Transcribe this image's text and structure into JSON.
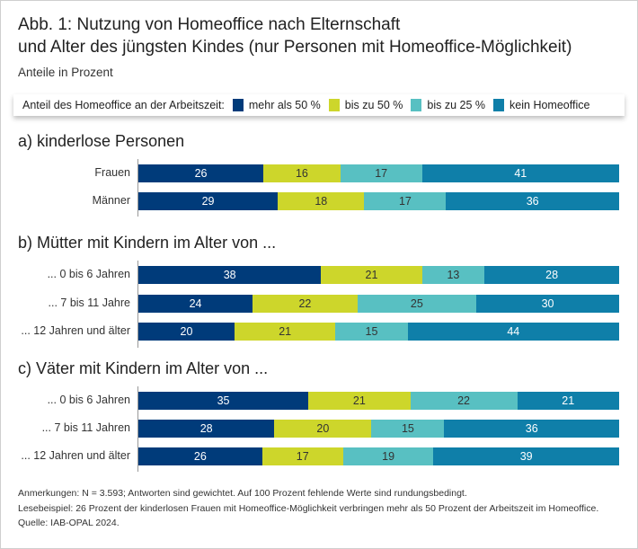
{
  "title_line1": "Abb. 1: Nutzung von Homeoffice nach Elternschaft",
  "title_line2": "und Alter des jüngsten Kindes (nur Personen mit Homeoffice-Möglichkeit)",
  "subtitle": "Anteile in Prozent",
  "legend_title": "Anteil des Homeoffice an der Arbeitszeit:",
  "notes": [
    "Anmerkungen: N = 3.593; Antworten sind gewichtet. Auf 100 Prozent fehlende Werte sind rundungsbedingt.",
    "Lesebeispiel: 26 Prozent der kinderlosen Frauen mit Homeoffice-Möglichkeit verbringen mehr als 50 Prozent der Arbeitszeit im Homeoffice.",
    "Quelle: IAB-OPAL 2024."
  ],
  "chart_data": {
    "type": "bar",
    "orientation": "horizontal",
    "stacked": true,
    "grid": false,
    "legend_position": "top",
    "series": [
      {
        "name": "mehr als 50 %",
        "color": "#003b7a",
        "text_color": "#ffffff"
      },
      {
        "name": "bis zu 50 %",
        "color": "#cdd62b",
        "text_color": "#333333"
      },
      {
        "name": "bis zu 25 %",
        "color": "#58c0c2",
        "text_color": "#333333"
      },
      {
        "name": "kein Homeoffice",
        "color": "#0f7fa9",
        "text_color": "#ffffff"
      }
    ],
    "groups": [
      {
        "title": "a) kinderlose Personen",
        "rows": [
          {
            "label": "Frauen",
            "values": [
              26,
              16,
              17,
              41
            ]
          },
          {
            "label": "Männer",
            "values": [
              29,
              18,
              17,
              36
            ]
          }
        ]
      },
      {
        "title": "b) Mütter mit Kindern im Alter von ...",
        "rows": [
          {
            "label": "... 0 bis 6 Jahren",
            "values": [
              38,
              21,
              13,
              28
            ]
          },
          {
            "label": "... 7 bis 11 Jahre",
            "values": [
              24,
              22,
              25,
              30
            ]
          },
          {
            "label": "... 12 Jahren und älter",
            "values": [
              20,
              21,
              15,
              44
            ]
          }
        ]
      },
      {
        "title": "c) Väter mit Kindern im Alter von ...",
        "rows": [
          {
            "label": "... 0 bis 6 Jahren",
            "values": [
              35,
              21,
              22,
              21
            ]
          },
          {
            "label": "... 7 bis 11 Jahren",
            "values": [
              28,
              20,
              15,
              36
            ]
          },
          {
            "label": "... 12 Jahren und älter",
            "values": [
              26,
              17,
              19,
              39
            ]
          }
        ]
      }
    ]
  }
}
